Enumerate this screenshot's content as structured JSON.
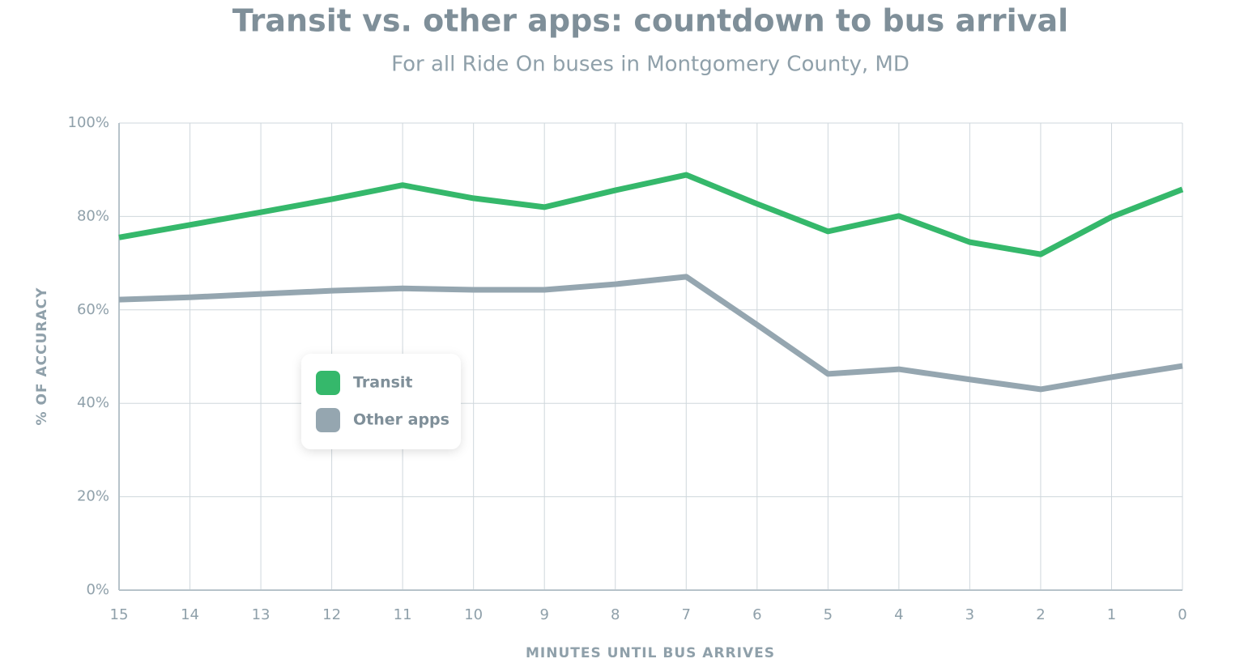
{
  "chart_data": {
    "type": "line",
    "title": "Transit vs. other apps: countdown to bus arrival",
    "subtitle": "For all Ride On buses in Montgomery County, MD",
    "x_label": "MINUTES UNTIL BUS ARRIVES",
    "y_label": "% OF ACCURACY",
    "x": [
      15,
      14,
      13,
      12,
      11,
      10,
      9,
      8,
      7,
      6,
      5,
      4,
      3,
      2,
      1,
      0
    ],
    "series": [
      {
        "name": "Transit",
        "color": "#35b86b",
        "values": [
          75.5,
          78.2,
          80.9,
          83.7,
          86.7,
          83.9,
          82.0,
          85.6,
          88.9,
          82.7,
          76.8,
          80.1,
          74.5,
          71.9,
          79.9,
          85.8
        ]
      },
      {
        "name": "Other apps",
        "color": "#95a6b0",
        "values": [
          62.2,
          62.7,
          63.4,
          64.1,
          64.6,
          64.3,
          64.3,
          65.5,
          67.1,
          56.8,
          46.3,
          47.3,
          45.1,
          43.0,
          45.6,
          48.0
        ]
      }
    ],
    "xlim": [
      15,
      0
    ],
    "xticks": [
      15,
      14,
      13,
      12,
      11,
      10,
      9,
      8,
      7,
      6,
      5,
      4,
      3,
      2,
      1,
      0
    ],
    "ylim": [
      0,
      100
    ],
    "yticks": [
      {
        "value": 0,
        "label": "0%"
      },
      {
        "value": 20,
        "label": "20%"
      },
      {
        "value": 40,
        "label": "40%"
      },
      {
        "value": 60,
        "label": "60%"
      },
      {
        "value": 80,
        "label": "80%"
      },
      {
        "value": 100,
        "label": "100%"
      }
    ],
    "grid": true
  }
}
